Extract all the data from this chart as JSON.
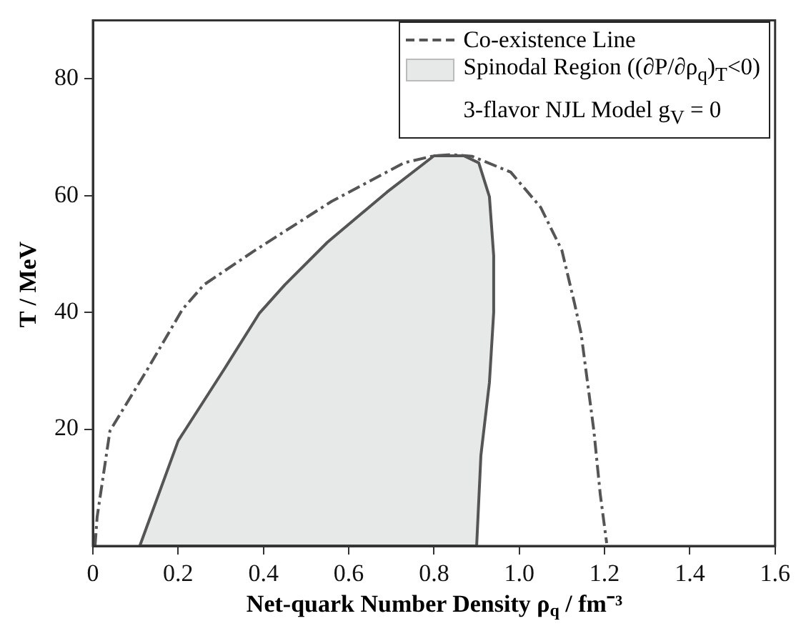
{
  "chart_data": {
    "type": "line",
    "xlabel": "Net-quark Number Density ρ$_{q}$ / fm⁻³",
    "ylabel": "T / MeV",
    "xlim": [
      0,
      1.6
    ],
    "xticks": [
      0,
      0.2,
      0.4,
      0.6,
      0.8,
      {
        "value": 1,
        "label": "1.0"
      },
      1.2,
      1.4,
      1.6
    ],
    "ylim": [
      0,
      90
    ],
    "yticks": [
      20,
      40,
      60,
      80
    ],
    "grid": false,
    "legend": "top right",
    "marker": "none",
    "annotations": [
      "3-flavor NJL Model g$_{V}$ = 0"
    ],
    "series": [
      {
        "name": "Co-existence Line",
        "type": "line",
        "line_style": "dashed",
        "color": "#555555",
        "x": [
          0.005,
          0.01,
          0.04,
          0.13,
          0.21,
          0.26,
          0.38,
          0.56,
          0.73,
          0.8,
          0.84,
          0.89,
          0.98,
          1.05,
          1.1,
          1.13,
          1.145,
          1.175,
          1.19,
          1.205
        ],
        "values": [
          0,
          5,
          19.7,
          30.5,
          40.5,
          44.7,
          50.6,
          59,
          65.6,
          66.8,
          67,
          66.7,
          64,
          58,
          50.6,
          41.4,
          36.4,
          19.7,
          8.8,
          0.5
        ]
      },
      {
        "name": "Spinodal Region ((∂P/∂ρ$_{q}$)$_{T}$<0)",
        "type": "area",
        "color": "#e7e8e8",
        "x": [
          0.11,
          0.2,
          0.31,
          0.39,
          0.45,
          0.55,
          0.69,
          0.8,
          0.87,
          0.905,
          0.93,
          0.94,
          0.94,
          0.93,
          0.91,
          0.9,
          0.11
        ],
        "values": [
          0,
          18,
          30.5,
          39.8,
          44.7,
          52,
          60.6,
          66.8,
          66.8,
          65.6,
          59.8,
          49.7,
          40,
          28,
          15.5,
          0,
          0
        ]
      }
    ]
  }
}
